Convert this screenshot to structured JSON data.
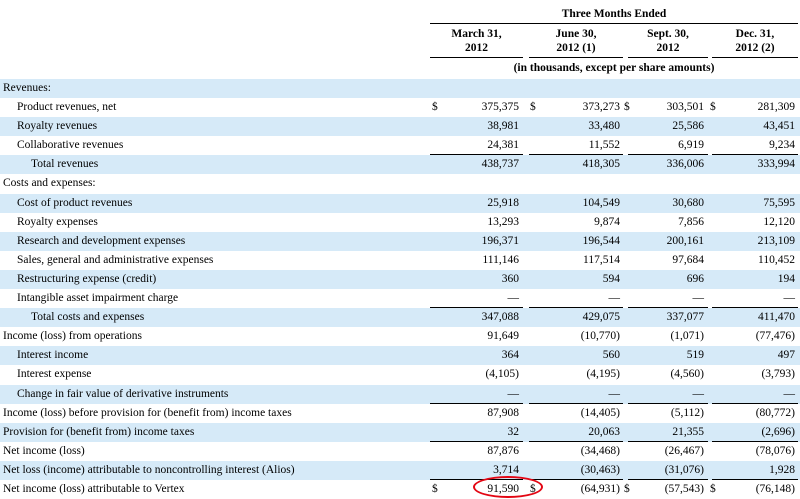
{
  "header": {
    "period_title": "Three Months Ended",
    "columns": [
      {
        "line1": "March 31,",
        "line2": "2012"
      },
      {
        "line1": "June 30,",
        "line2": "2012 (1)"
      },
      {
        "line1": "Sept. 30,",
        "line2": "2012"
      },
      {
        "line1": "Dec. 31,",
        "line2": "2012 (2)"
      }
    ],
    "units_note": "(in thousands, except per share amounts)"
  },
  "rows": [
    {
      "label": "Revenues:",
      "indent": 0,
      "values": [
        "",
        "",
        "",
        ""
      ],
      "currency": false,
      "underline": false
    },
    {
      "label": "Product revenues, net",
      "indent": 1,
      "values": [
        "375,375",
        "373,273",
        "303,501",
        "281,309"
      ],
      "currency": true,
      "underline": false
    },
    {
      "label": "Royalty revenues",
      "indent": 1,
      "values": [
        "38,981",
        "33,480",
        "25,586",
        "43,451"
      ],
      "currency": false,
      "underline": false
    },
    {
      "label": "Collaborative revenues",
      "indent": 1,
      "values": [
        "24,381",
        "11,552",
        "6,919",
        "9,234"
      ],
      "currency": false,
      "underline": true
    },
    {
      "label": "Total revenues",
      "indent": 2,
      "values": [
        "438,737",
        "418,305",
        "336,006",
        "333,994"
      ],
      "currency": false,
      "underline": false
    },
    {
      "label": "Costs and expenses:",
      "indent": 0,
      "values": [
        "",
        "",
        "",
        ""
      ],
      "currency": false,
      "underline": false
    },
    {
      "label": "Cost of product revenues",
      "indent": 1,
      "values": [
        "25,918",
        "104,549",
        "30,680",
        "75,595"
      ],
      "currency": false,
      "underline": false
    },
    {
      "label": "Royalty expenses",
      "indent": 1,
      "values": [
        "13,293",
        "9,874",
        "7,856",
        "12,120"
      ],
      "currency": false,
      "underline": false
    },
    {
      "label": "Research and development expenses",
      "indent": 1,
      "values": [
        "196,371",
        "196,544",
        "200,161",
        "213,109"
      ],
      "currency": false,
      "underline": false
    },
    {
      "label": "Sales, general and administrative expenses",
      "indent": 1,
      "values": [
        "111,146",
        "117,514",
        "97,684",
        "110,452"
      ],
      "currency": false,
      "underline": false
    },
    {
      "label": "Restructuring expense (credit)",
      "indent": 1,
      "values": [
        "360",
        "594",
        "696",
        "194"
      ],
      "currency": false,
      "underline": false
    },
    {
      "label": "Intangible asset impairment charge",
      "indent": 1,
      "values": [
        "—",
        "—",
        "—",
        "—"
      ],
      "currency": false,
      "underline": true
    },
    {
      "label": "Total costs and expenses",
      "indent": 2,
      "values": [
        "347,088",
        "429,075",
        "337,077",
        "411,470"
      ],
      "currency": false,
      "underline": false
    },
    {
      "label": "Income (loss) from operations",
      "indent": 0,
      "values": [
        "91,649",
        "(10,770)",
        "(1,071)",
        "(77,476)"
      ],
      "currency": false,
      "underline": false
    },
    {
      "label": "Interest income",
      "indent": 1,
      "values": [
        "364",
        "560",
        "519",
        "497"
      ],
      "currency": false,
      "underline": false
    },
    {
      "label": "Interest expense",
      "indent": 1,
      "values": [
        "(4,105)",
        "(4,195)",
        "(4,560)",
        "(3,793)"
      ],
      "currency": false,
      "underline": false
    },
    {
      "label": "Change in fair value of derivative instruments",
      "indent": 1,
      "values": [
        "—",
        "—",
        "—",
        "—"
      ],
      "currency": false,
      "underline": true
    },
    {
      "label": "Income (loss) before provision for (benefit from) income taxes",
      "indent": 0,
      "values": [
        "87,908",
        "(14,405)",
        "(5,112)",
        "(80,772)"
      ],
      "currency": false,
      "underline": false
    },
    {
      "label": "Provision for (benefit from) income taxes",
      "indent": 0,
      "values": [
        "32",
        "20,063",
        "21,355",
        "(2,696)"
      ],
      "currency": false,
      "underline": true
    },
    {
      "label": "Net income (loss)",
      "indent": 0,
      "values": [
        "87,876",
        "(34,468)",
        "(26,467)",
        "(78,076)"
      ],
      "currency": false,
      "underline": false
    },
    {
      "label": "Net loss (income) attributable to noncontrolling interest (Alios)",
      "indent": 0,
      "values": [
        "3,714",
        "(30,463)",
        "(31,076)",
        "1,928"
      ],
      "currency": false,
      "underline": true
    },
    {
      "label": "Net income (loss) attributable to Vertex",
      "indent": 0,
      "values": [
        "91,590",
        "(64,931)",
        "(57,543)",
        "(76,148)"
      ],
      "currency": true,
      "underline": false
    }
  ],
  "currency_symbol": "$",
  "highlight_color": "#e30613",
  "shade_color": "#d6eaf8"
}
